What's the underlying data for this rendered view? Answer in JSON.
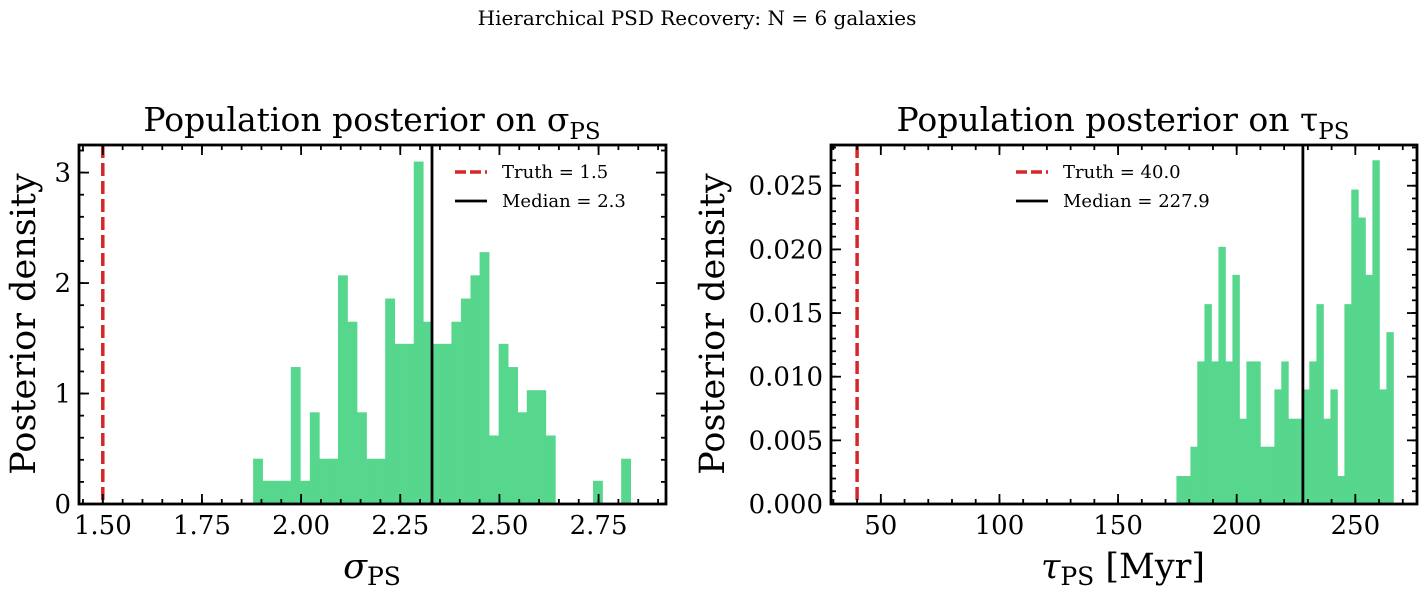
{
  "figure": {
    "suptitle": "Hierarchical PSD Recovery: N = 6 galaxies",
    "bar_color": "#57d68d",
    "truth_color": "#d62728",
    "median_color": "#000000"
  },
  "chart_data": [
    {
      "type": "bar",
      "title": "Population posterior on σ",
      "title_sub": "PS",
      "xlabel": "σ",
      "xlabel_sub": "PS",
      "xlabel_suffix": "",
      "ylabel": "Posterior density",
      "xlim": [
        1.44,
        2.92
      ],
      "ylim": [
        0,
        3.25
      ],
      "xticks": [
        1.5,
        1.75,
        2.0,
        2.25,
        2.5,
        2.75
      ],
      "xtick_labels": [
        "1.50",
        "1.75",
        "2.00",
        "2.25",
        "2.50",
        "2.75"
      ],
      "yticks": [
        0,
        1,
        2,
        3
      ],
      "ytick_labels": [
        "0",
        "1",
        "2",
        "3"
      ],
      "bin_width": 0.0238,
      "bins": [
        {
          "x": 1.879,
          "y": 0.41
        },
        {
          "x": 1.903,
          "y": 0.21
        },
        {
          "x": 1.927,
          "y": 0.21
        },
        {
          "x": 1.95,
          "y": 0.21
        },
        {
          "x": 1.974,
          "y": 1.24
        },
        {
          "x": 1.998,
          "y": 0.21
        },
        {
          "x": 2.022,
          "y": 0.83
        },
        {
          "x": 2.046,
          "y": 0.41
        },
        {
          "x": 2.069,
          "y": 0.41
        },
        {
          "x": 2.093,
          "y": 2.07
        },
        {
          "x": 2.117,
          "y": 1.65
        },
        {
          "x": 2.141,
          "y": 0.83
        },
        {
          "x": 2.165,
          "y": 0.41
        },
        {
          "x": 2.188,
          "y": 0.41
        },
        {
          "x": 2.212,
          "y": 1.86
        },
        {
          "x": 2.236,
          "y": 1.45
        },
        {
          "x": 2.26,
          "y": 1.45
        },
        {
          "x": 2.284,
          "y": 3.1
        },
        {
          "x": 2.308,
          "y": 1.65
        },
        {
          "x": 2.331,
          "y": 1.45
        },
        {
          "x": 2.355,
          "y": 1.45
        },
        {
          "x": 2.379,
          "y": 1.65
        },
        {
          "x": 2.403,
          "y": 1.86
        },
        {
          "x": 2.427,
          "y": 2.07
        },
        {
          "x": 2.45,
          "y": 2.28
        },
        {
          "x": 2.474,
          "y": 0.62
        },
        {
          "x": 2.498,
          "y": 1.45
        },
        {
          "x": 2.522,
          "y": 1.24
        },
        {
          "x": 2.546,
          "y": 0.83
        },
        {
          "x": 2.569,
          "y": 1.03
        },
        {
          "x": 2.593,
          "y": 1.03
        },
        {
          "x": 2.617,
          "y": 0.62
        },
        {
          "x": 2.736,
          "y": 0.21
        },
        {
          "x": 2.807,
          "y": 0.41
        }
      ],
      "truth": {
        "value": 1.5,
        "label": "Truth = 1.5"
      },
      "median": {
        "value": 2.33,
        "label": "Median = 2.3"
      },
      "legend": "upper right"
    },
    {
      "type": "bar",
      "title": "Population posterior on τ",
      "title_sub": "PS",
      "xlabel": "τ",
      "xlabel_sub": "PS",
      "xlabel_suffix": " [Myr]",
      "ylabel": "Posterior density",
      "xlim": [
        29,
        276
      ],
      "ylim": [
        0,
        0.0282
      ],
      "xticks": [
        50,
        100,
        150,
        200,
        250
      ],
      "xtick_labels": [
        "50",
        "100",
        "150",
        "200",
        "250"
      ],
      "yticks": [
        0,
        0.005,
        0.01,
        0.015,
        0.02,
        0.025
      ],
      "ytick_labels": [
        "0.000",
        "0.005",
        "0.010",
        "0.015",
        "0.020",
        "0.025"
      ],
      "bin_width": 2.95,
      "bins": [
        {
          "x": 174.6,
          "y": 0.0022
        },
        {
          "x": 177.5,
          "y": 0.0022
        },
        {
          "x": 180.5,
          "y": 0.0045
        },
        {
          "x": 183.4,
          "y": 0.0112
        },
        {
          "x": 186.4,
          "y": 0.0157
        },
        {
          "x": 189.3,
          "y": 0.0112
        },
        {
          "x": 192.3,
          "y": 0.0202
        },
        {
          "x": 195.2,
          "y": 0.0112
        },
        {
          "x": 198.2,
          "y": 0.018
        },
        {
          "x": 201.1,
          "y": 0.0067
        },
        {
          "x": 204.1,
          "y": 0.0112
        },
        {
          "x": 207.0,
          "y": 0.0112
        },
        {
          "x": 210.0,
          "y": 0.0045
        },
        {
          "x": 212.9,
          "y": 0.0045
        },
        {
          "x": 215.9,
          "y": 0.009
        },
        {
          "x": 218.8,
          "y": 0.0112
        },
        {
          "x": 221.8,
          "y": 0.0067
        },
        {
          "x": 224.7,
          "y": 0.0067
        },
        {
          "x": 227.7,
          "y": 0.009
        },
        {
          "x": 230.6,
          "y": 0.0112
        },
        {
          "x": 233.6,
          "y": 0.0157
        },
        {
          "x": 236.5,
          "y": 0.0067
        },
        {
          "x": 239.5,
          "y": 0.009
        },
        {
          "x": 242.4,
          "y": 0.0022
        },
        {
          "x": 245.4,
          "y": 0.0157
        },
        {
          "x": 248.3,
          "y": 0.0247
        },
        {
          "x": 251.3,
          "y": 0.0225
        },
        {
          "x": 254.2,
          "y": 0.018
        },
        {
          "x": 257.2,
          "y": 0.027
        },
        {
          "x": 260.1,
          "y": 0.009
        },
        {
          "x": 263.1,
          "y": 0.0135
        }
      ],
      "truth": {
        "value": 40.0,
        "label": "Truth = 40.0"
      },
      "median": {
        "value": 227.9,
        "label": "Median = 227.9"
      },
      "legend": "upper center"
    }
  ]
}
